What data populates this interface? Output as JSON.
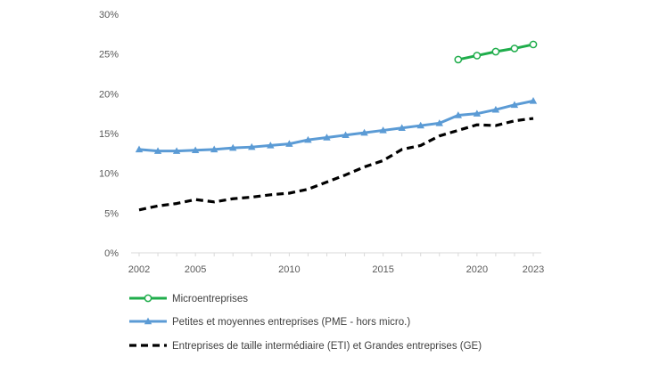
{
  "chart_data": {
    "type": "line",
    "title": "",
    "xlabel": "",
    "ylabel": "",
    "xlim": [
      2002,
      2023
    ],
    "ylim": [
      0,
      30
    ],
    "x_ticks": [
      2002,
      2005,
      2010,
      2015,
      2020,
      2023
    ],
    "x_tick_labels": [
      "2002",
      "2005",
      "2010",
      "2015",
      "2020",
      "2023"
    ],
    "y_ticks": [
      0,
      5,
      10,
      15,
      20,
      25,
      30
    ],
    "y_tick_labels": [
      "0%",
      "5%",
      "10%",
      "15%",
      "20%",
      "25%",
      "30%"
    ],
    "grid": false,
    "legend_position": "bottom",
    "series": [
      {
        "name": "Microentreprises",
        "color": "#1FAD4B",
        "marker": "hollow-circle",
        "line_style": "solid",
        "x": [
          2019,
          2020,
          2021,
          2022,
          2023
        ],
        "values": [
          24.3,
          24.8,
          25.3,
          25.7,
          26.2
        ]
      },
      {
        "name": "Petites et moyennes entreprises (PME - hors micro.)",
        "color": "#5B9BD5",
        "marker": "triangle",
        "line_style": "solid",
        "x": [
          2002,
          2003,
          2004,
          2005,
          2006,
          2007,
          2008,
          2009,
          2010,
          2011,
          2012,
          2013,
          2014,
          2015,
          2016,
          2017,
          2018,
          2019,
          2020,
          2021,
          2022,
          2023
        ],
        "values": [
          13.0,
          12.8,
          12.8,
          12.9,
          13.0,
          13.2,
          13.3,
          13.5,
          13.7,
          14.2,
          14.5,
          14.8,
          15.1,
          15.4,
          15.7,
          16.0,
          16.3,
          17.3,
          17.5,
          18.0,
          18.6,
          19.1
        ]
      },
      {
        "name": "Entreprises de taille intermédiaire (ETI) et Grandes entreprises (GE)",
        "color": "#000000",
        "marker": "none",
        "line_style": "dashed",
        "x": [
          2002,
          2003,
          2004,
          2005,
          2006,
          2007,
          2008,
          2009,
          2010,
          2011,
          2012,
          2013,
          2014,
          2015,
          2016,
          2017,
          2018,
          2019,
          2020,
          2021,
          2022,
          2023
        ],
        "values": [
          5.4,
          5.9,
          6.2,
          6.7,
          6.4,
          6.8,
          7.0,
          7.3,
          7.5,
          8.0,
          8.9,
          9.8,
          10.8,
          11.6,
          13.0,
          13.5,
          14.7,
          15.4,
          16.1,
          16.0,
          16.6,
          16.9
        ]
      }
    ]
  }
}
